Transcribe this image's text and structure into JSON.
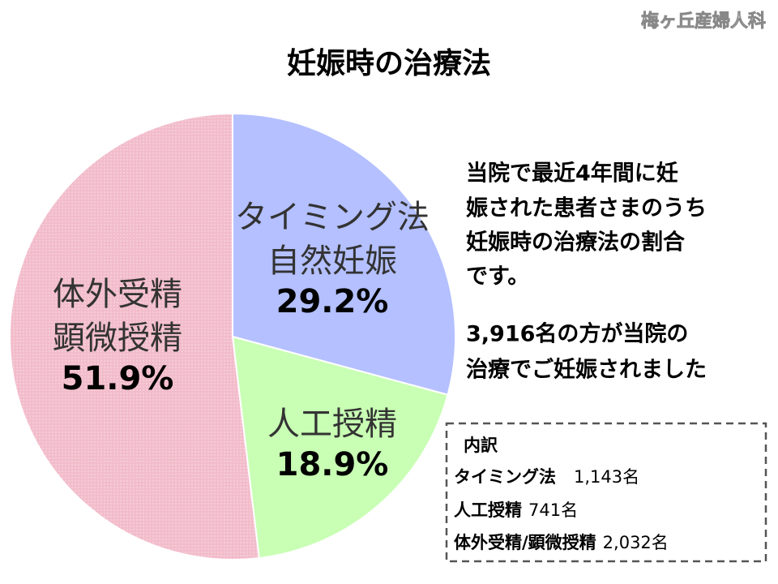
{
  "watermark": "梅ヶ丘産婦人科",
  "chart_data": {
    "type": "pie",
    "title": "妊娠時の治療法",
    "categories": [
      [
        "タイミング法",
        "自然妊娠"
      ],
      [
        "人工授精"
      ],
      [
        "体外受精",
        "顕微授精"
      ]
    ],
    "values": [
      29.2,
      18.9,
      51.9
    ],
    "value_labels": [
      "29.2%",
      "18.9%",
      "51.9%"
    ],
    "colors": [
      "#b4c0ff",
      "#c8ffb4",
      "#f2bccb"
    ],
    "start_angle": "top",
    "direction": "clockwise"
  },
  "description": {
    "paragraph1": [
      "当院で最近4年間に妊",
      "娠された患者さまのうち",
      "妊娠時の治療法の割合",
      "です。"
    ],
    "paragraph2": [
      "3,916名の方が当院の",
      "治療でご妊娠されました"
    ]
  },
  "breakdown": {
    "title": "内訳",
    "items": [
      {
        "label": "タイミング法",
        "count": "1,143名"
      },
      {
        "label": "人工授精",
        "count": "741名"
      },
      {
        "label": "体外受精/顕微授精",
        "count": "2,032名"
      }
    ]
  }
}
